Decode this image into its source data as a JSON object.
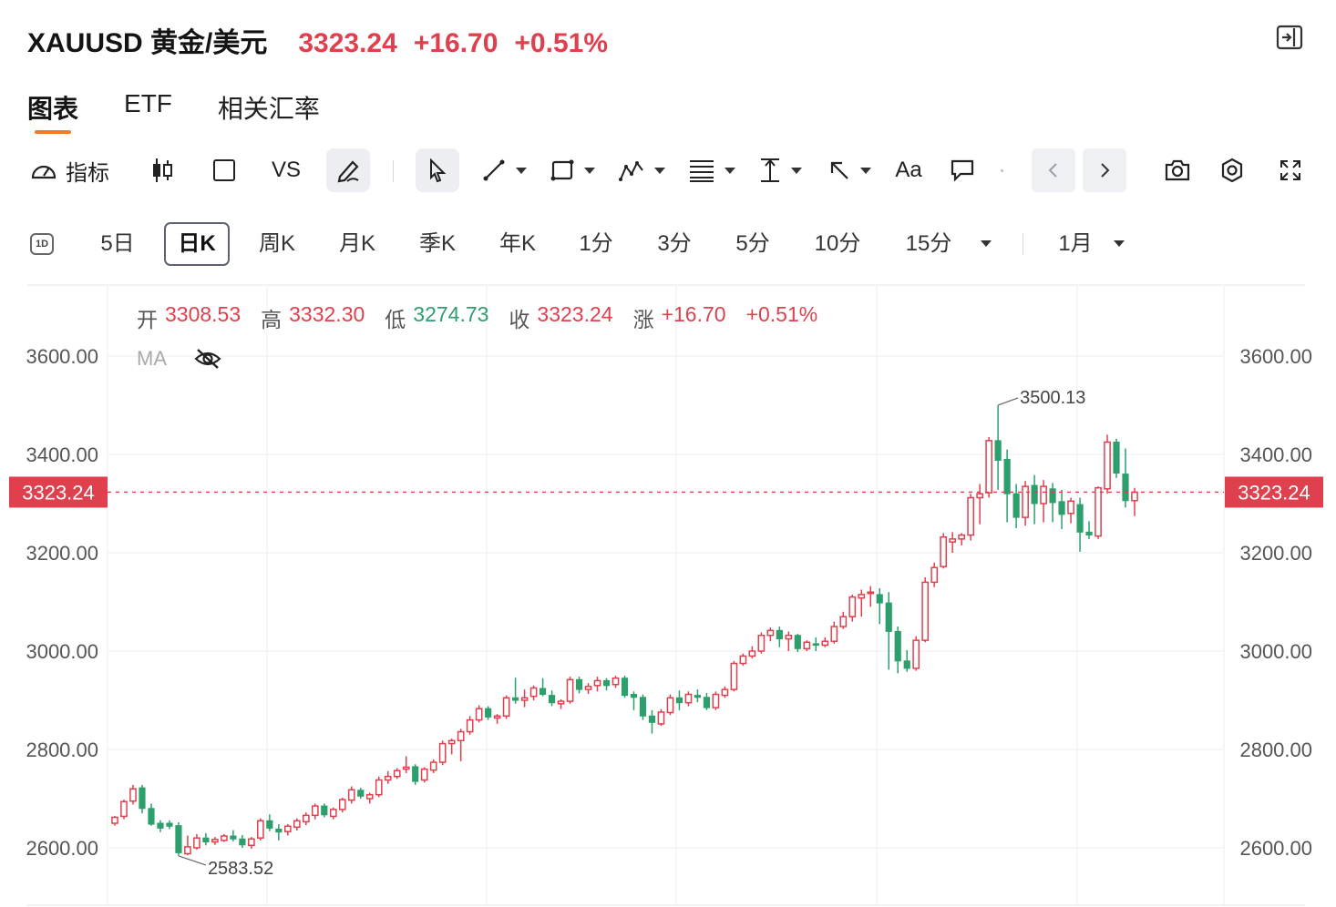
{
  "header": {
    "symbol": "XAUUSD 黄金/美元",
    "price": "3323.24",
    "change": "+16.70",
    "change_pct": "+0.51%"
  },
  "tabs": [
    {
      "label": "图表",
      "active": true
    },
    {
      "label": "ETF",
      "active": false
    },
    {
      "label": "相关汇率",
      "active": false
    }
  ],
  "toolbar": {
    "indicator_label": "指标",
    "vs_label": "VS",
    "text_label": "Aa",
    "icons": [
      "gauge-icon",
      "candlestick-icon",
      "square-icon",
      "pencil-icon",
      "cursor-icon",
      "line-icon",
      "rect-icon",
      "wave-icon",
      "fib-icon",
      "vertical-measure-icon",
      "arrow-icon",
      "text-icon",
      "comment-icon",
      "chevron-left-icon",
      "chevron-right-icon",
      "camera-icon",
      "gear-icon",
      "fullscreen-icon"
    ]
  },
  "periods": {
    "items": [
      "5日",
      "日K",
      "周K",
      "月K",
      "季K",
      "年K",
      "1分",
      "3分",
      "5分",
      "10分",
      "15分",
      "1月"
    ],
    "active": "日K",
    "icon_label": "1D"
  },
  "ohlc": {
    "open_label": "开",
    "open": "3308.53",
    "high_label": "高",
    "high": "3332.30",
    "low_label": "低",
    "low": "3274.73",
    "close_label": "收",
    "close": "3323.24",
    "chg_label": "涨",
    "chg": "+16.70",
    "chg_pct": "+0.51%"
  },
  "ma_label": "MA",
  "colors": {
    "up": "#e0404e",
    "down": "#2c9f6c",
    "accent": "#f07a2a"
  },
  "chart_data": {
    "type": "candlestick",
    "ylim": [
      2480,
      3720
    ],
    "y_ticks": [
      "2600.00",
      "2800.00",
      "3000.00",
      "3200.00",
      "3400.00",
      "3600.00"
    ],
    "current_price_label": "3323.24",
    "current_price": 3323.24,
    "max_label": "3500.13",
    "min_label": "2583.52",
    "candles": [
      [
        2650,
        2665,
        2645,
        2662
      ],
      [
        2664,
        2698,
        2658,
        2694
      ],
      [
        2695,
        2728,
        2688,
        2720
      ],
      [
        2722,
        2728,
        2670,
        2680
      ],
      [
        2680,
        2690,
        2645,
        2648
      ],
      [
        2650,
        2656,
        2632,
        2640
      ],
      [
        2650,
        2656,
        2638,
        2644
      ],
      [
        2645,
        2652,
        2583.52,
        2590
      ],
      [
        2588,
        2625,
        2585,
        2602
      ],
      [
        2600,
        2628,
        2596,
        2620
      ],
      [
        2620,
        2630,
        2605,
        2612
      ],
      [
        2612,
        2622,
        2606,
        2617
      ],
      [
        2615,
        2628,
        2612,
        2624
      ],
      [
        2624,
        2636,
        2613,
        2618
      ],
      [
        2618,
        2626,
        2600,
        2606
      ],
      [
        2605,
        2622,
        2598,
        2618
      ],
      [
        2620,
        2660,
        2615,
        2655
      ],
      [
        2655,
        2668,
        2634,
        2640
      ],
      [
        2638,
        2648,
        2615,
        2632
      ],
      [
        2633,
        2648,
        2625,
        2644
      ],
      [
        2642,
        2660,
        2635,
        2655
      ],
      [
        2653,
        2672,
        2646,
        2666
      ],
      [
        2666,
        2690,
        2658,
        2685
      ],
      [
        2685,
        2690,
        2662,
        2667
      ],
      [
        2664,
        2682,
        2658,
        2678
      ],
      [
        2678,
        2702,
        2672,
        2698
      ],
      [
        2697,
        2725,
        2690,
        2718
      ],
      [
        2717,
        2722,
        2700,
        2705
      ],
      [
        2700,
        2712,
        2690,
        2708
      ],
      [
        2708,
        2745,
        2703,
        2738
      ],
      [
        2738,
        2756,
        2730,
        2745
      ],
      [
        2745,
        2762,
        2740,
        2757
      ],
      [
        2760,
        2786,
        2752,
        2764
      ],
      [
        2765,
        2770,
        2728,
        2735
      ],
      [
        2738,
        2764,
        2733,
        2760
      ],
      [
        2758,
        2780,
        2752,
        2774
      ],
      [
        2774,
        2818,
        2768,
        2812
      ],
      [
        2812,
        2822,
        2790,
        2818
      ],
      [
        2818,
        2842,
        2776,
        2836
      ],
      [
        2836,
        2868,
        2830,
        2860
      ],
      [
        2860,
        2890,
        2855,
        2883
      ],
      [
        2883,
        2888,
        2860,
        2866
      ],
      [
        2864,
        2872,
        2852,
        2868
      ],
      [
        2868,
        2910,
        2862,
        2905
      ],
      [
        2905,
        2946,
        2893,
        2900
      ],
      [
        2900,
        2922,
        2886,
        2905
      ],
      [
        2908,
        2930,
        2900,
        2925
      ],
      [
        2924,
        2945,
        2908,
        2912
      ],
      [
        2910,
        2920,
        2888,
        2895
      ],
      [
        2893,
        2902,
        2882,
        2898
      ],
      [
        2898,
        2948,
        2893,
        2942
      ],
      [
        2942,
        2948,
        2914,
        2922
      ],
      [
        2922,
        2935,
        2913,
        2928
      ],
      [
        2930,
        2948,
        2918,
        2940
      ],
      [
        2940,
        2945,
        2920,
        2930
      ],
      [
        2932,
        2950,
        2925,
        2945
      ],
      [
        2945,
        2950,
        2905,
        2910
      ],
      [
        2912,
        2918,
        2880,
        2906
      ],
      [
        2906,
        2912,
        2860,
        2868
      ],
      [
        2868,
        2880,
        2832,
        2855
      ],
      [
        2852,
        2882,
        2848,
        2876
      ],
      [
        2875,
        2912,
        2870,
        2905
      ],
      [
        2905,
        2920,
        2880,
        2895
      ],
      [
        2895,
        2918,
        2888,
        2912
      ],
      [
        2910,
        2922,
        2896,
        2906
      ],
      [
        2906,
        2915,
        2880,
        2885
      ],
      [
        2885,
        2918,
        2880,
        2912
      ],
      [
        2910,
        2928,
        2905,
        2922
      ],
      [
        2922,
        2980,
        2918,
        2975
      ],
      [
        2975,
        2995,
        2970,
        2990
      ],
      [
        2990,
        3010,
        2985,
        3000
      ],
      [
        3000,
        3038,
        2995,
        3032
      ],
      [
        3032,
        3048,
        3020,
        3042
      ],
      [
        3042,
        3050,
        3008,
        3025
      ],
      [
        3025,
        3040,
        3000,
        3032
      ],
      [
        3032,
        3035,
        2998,
        3005
      ],
      [
        3005,
        3022,
        3000,
        3018
      ],
      [
        3015,
        3028,
        3000,
        3012
      ],
      [
        3012,
        3028,
        3008,
        3020
      ],
      [
        3020,
        3060,
        3015,
        3050
      ],
      [
        3050,
        3080,
        3045,
        3070
      ],
      [
        3070,
        3115,
        3060,
        3110
      ],
      [
        3108,
        3125,
        3070,
        3115
      ],
      [
        3118,
        3132,
        3090,
        3120
      ],
      [
        3115,
        3128,
        3055,
        3098
      ],
      [
        3098,
        3120,
        2962,
        3040
      ],
      [
        3040,
        3050,
        2955,
        2980
      ],
      [
        2980,
        3002,
        2958,
        2965
      ],
      [
        2965,
        3030,
        2960,
        3022
      ],
      [
        3022,
        3150,
        3018,
        3140
      ],
      [
        3140,
        3180,
        3130,
        3170
      ],
      [
        3172,
        3240,
        3168,
        3232
      ],
      [
        3222,
        3242,
        3200,
        3228
      ],
      [
        3228,
        3240,
        3215,
        3236
      ],
      [
        3236,
        3320,
        3225,
        3312
      ],
      [
        3312,
        3340,
        3258,
        3320
      ],
      [
        3322,
        3435,
        3312,
        3428
      ],
      [
        3428,
        3500.13,
        3328,
        3388
      ],
      [
        3390,
        3410,
        3262,
        3320
      ],
      [
        3320,
        3340,
        3250,
        3272
      ],
      [
        3272,
        3346,
        3255,
        3335
      ],
      [
        3337,
        3358,
        3258,
        3300
      ],
      [
        3300,
        3348,
        3262,
        3335
      ],
      [
        3330,
        3342,
        3262,
        3302
      ],
      [
        3304,
        3328,
        3248,
        3278
      ],
      [
        3280,
        3312,
        3260,
        3305
      ],
      [
        3298,
        3312,
        3202,
        3242
      ],
      [
        3242,
        3264,
        3228,
        3236
      ],
      [
        3234,
        3335,
        3228,
        3332
      ],
      [
        3330,
        3440,
        3320,
        3425
      ],
      [
        3425,
        3432,
        3352,
        3362
      ],
      [
        3360,
        3412,
        3292,
        3306
      ],
      [
        3306,
        3332,
        3274.73,
        3323.24
      ]
    ]
  }
}
